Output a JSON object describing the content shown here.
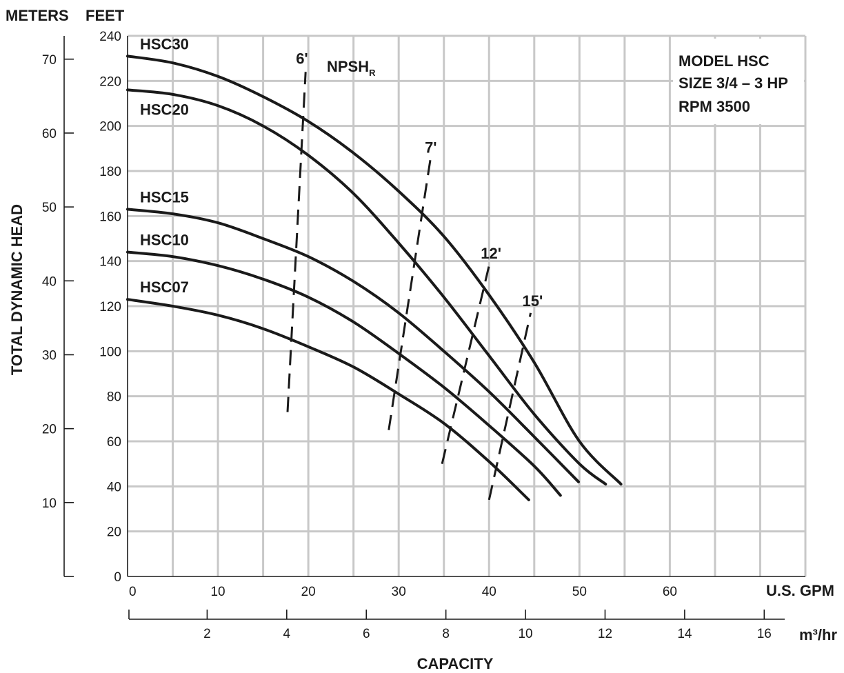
{
  "chart_data": {
    "type": "line",
    "title": "",
    "info_box": [
      "MODEL HSC",
      "SIZE 3/4 – 3 HP",
      "RPM 3500"
    ],
    "axes": {
      "y_left_unit": "METERS",
      "y_feet_unit": "FEET",
      "y_title": "TOTAL DYNAMIC HEAD",
      "x_title": "CAPACITY",
      "x_gpm_unit": "U.S. GPM",
      "x_m3hr_unit": "m³/hr",
      "x_gpm_range": [
        0,
        75
      ],
      "y_feet_range": [
        0,
        240
      ],
      "x_gpm_ticks": [
        "0",
        "10",
        "20",
        "30",
        "40",
        "50",
        "60"
      ],
      "y_feet_ticks": [
        "0",
        "20",
        "40",
        "60",
        "80",
        "100",
        "120",
        "140",
        "160",
        "180",
        "200",
        "220",
        "240"
      ],
      "y_meter_ticks": [
        "10",
        "20",
        "30",
        "40",
        "50",
        "60",
        "70"
      ],
      "x_m3hr_ticks": [
        "2",
        "4",
        "6",
        "8",
        "10",
        "12",
        "14",
        "16"
      ]
    },
    "grid": true,
    "series": [
      {
        "name": "HSC30",
        "x": [
          0,
          5,
          10,
          15,
          20,
          25,
          30,
          35,
          40,
          45,
          50,
          54.6
        ],
        "y": [
          231,
          228,
          222,
          213,
          202,
          188,
          171,
          151,
          125,
          95,
          60,
          41
        ]
      },
      {
        "name": "HSC20",
        "x": [
          0,
          5,
          10,
          15,
          20,
          25,
          30,
          35,
          40,
          45,
          50,
          52.9
        ],
        "y": [
          216,
          214,
          209,
          200,
          187,
          170,
          148,
          124,
          98,
          72,
          50,
          41
        ]
      },
      {
        "name": "HSC15",
        "x": [
          0,
          5,
          10,
          15,
          20,
          25,
          30,
          35,
          40,
          45,
          49.9
        ],
        "y": [
          163,
          161,
          157,
          150,
          142,
          131,
          117,
          100,
          82,
          62,
          42
        ]
      },
      {
        "name": "HSC10",
        "x": [
          0,
          5,
          10,
          15,
          20,
          25,
          30,
          35,
          40,
          45,
          47.9
        ],
        "y": [
          144,
          142,
          138,
          132,
          124,
          113,
          99,
          84,
          67,
          49,
          36
        ]
      },
      {
        "name": "HSC07",
        "x": [
          0,
          5,
          10,
          15,
          20,
          25,
          30,
          35,
          40,
          44.4
        ],
        "y": [
          123,
          120,
          116,
          110,
          102,
          93,
          81,
          68,
          51,
          34
        ]
      }
    ],
    "npsh_lines": [
      {
        "label": "6'",
        "x1": 17.7,
        "y1": 73,
        "x2": 19.7,
        "y2": 224
      },
      {
        "label": "7'",
        "x1": 28.9,
        "y1": 65,
        "x2": 33.5,
        "y2": 185
      },
      {
        "label": "12'",
        "x1": 34.8,
        "y1": 50,
        "x2": 40.0,
        "y2": 138
      },
      {
        "label": "15'",
        "x1": 40.0,
        "y1": 34,
        "x2": 44.6,
        "y2": 117
      }
    ],
    "npsh_label": "NPSH",
    "npsh_subscript": "R"
  }
}
